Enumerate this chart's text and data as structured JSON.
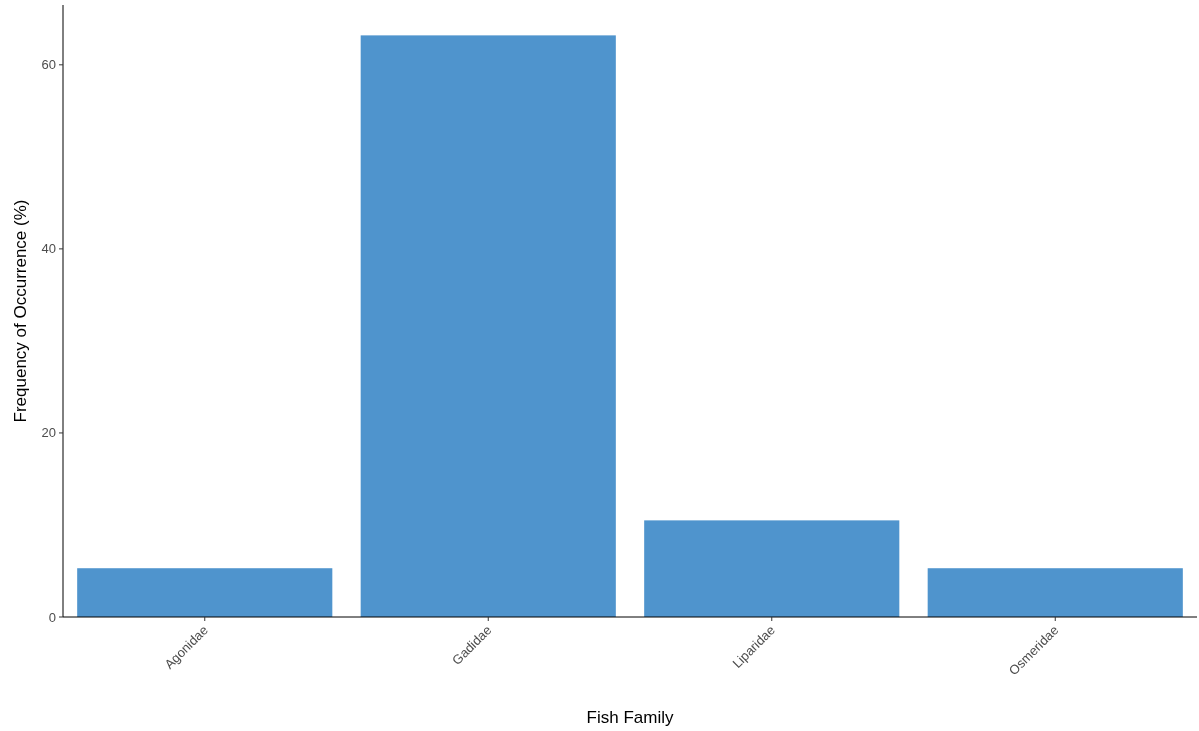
{
  "chart_data": {
    "type": "bar",
    "xlabel": "Fish Family",
    "ylabel": "Frequency of Occurrence (%)",
    "categories": [
      "Agonidae",
      "Gadidae",
      "Liparidae",
      "Osmeridae"
    ],
    "values": [
      5.3,
      63.2,
      10.5,
      5.3
    ],
    "color": "#4f94cd",
    "ylim": [
      0,
      66.5
    ],
    "yticks": [
      0,
      20,
      40,
      60
    ],
    "grid": false
  }
}
